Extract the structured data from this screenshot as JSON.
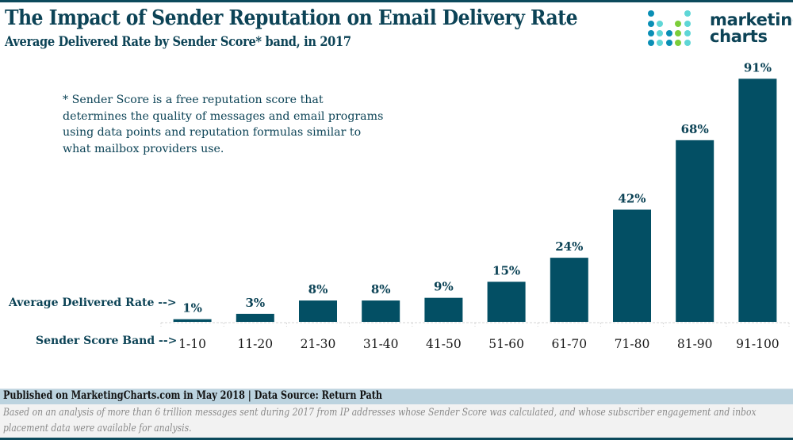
{
  "header": {
    "title": "The Impact of Sender Reputation on Email Delivery Rate",
    "subtitle": "Average Delivered Rate by Sender Score* band, in 2017"
  },
  "logo": {
    "line1": "marketing",
    "line2": "charts",
    "icon": "bar-dots-logo-icon",
    "colors": {
      "dark_blue": "#0a8fb5",
      "light_teal": "#5fd6d6",
      "green": "#7ccd3a"
    }
  },
  "note": "* Sender Score is a free reputation score that determines the quality of messages and email programs using data points and reputation formulas similar to what mailbox providers use.",
  "row_labels": {
    "value_row": "Average Delivered Rate -->",
    "category_row": "Sender Score Band -->"
  },
  "colors": {
    "bar": "#034f64",
    "title": "#0c4356",
    "axis": "#d9d9d9"
  },
  "chart_data": {
    "type": "bar",
    "title": "The Impact of Sender Reputation on Email Delivery Rate",
    "subtitle": "Average Delivered Rate by Sender Score* band, in 2017",
    "xlabel": "Sender Score Band",
    "ylabel": "Average Delivered Rate",
    "categories": [
      "1-10",
      "11-20",
      "21-30",
      "31-40",
      "41-50",
      "51-60",
      "61-70",
      "71-80",
      "81-90",
      "91-100"
    ],
    "values": [
      1,
      3,
      8,
      8,
      9,
      15,
      24,
      42,
      68,
      91
    ],
    "value_labels": [
      "1%",
      "3%",
      "8%",
      "8%",
      "9%",
      "15%",
      "24%",
      "42%",
      "68%",
      "91%"
    ],
    "unit": "%",
    "ylim": [
      0,
      100
    ],
    "grid": false,
    "legend": "none"
  },
  "footer": {
    "published": "Published on MarketingCharts.com in May 2018 | Data Source: Return Path",
    "methodology": "Based on an analysis of more than 6 trillion messages sent during 2017 from IP addresses whose Sender Score was calculated, and whose subscriber engagement and inbox placement data were available for analysis."
  }
}
